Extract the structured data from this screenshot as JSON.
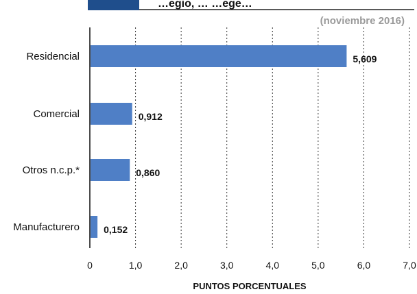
{
  "chart_data": {
    "type": "bar",
    "orientation": "horizontal",
    "title": "…egio, … …ege…",
    "subtitle": "(noviembre 2016)",
    "xlabel": "PUNTOS PORCENTUALES",
    "ylabel": "",
    "categories": [
      "Residencial",
      "Comercial",
      "Otros n.c.p.*",
      "Manufacturero"
    ],
    "values": [
      5.609,
      0.912,
      0.86,
      0.152
    ],
    "value_labels": [
      "5,609",
      "0,912",
      "0,860",
      "0,152"
    ],
    "xlim": [
      0,
      7
    ],
    "x_ticks": [
      "0",
      "1,0",
      "2,0",
      "3,0",
      "4,0",
      "5,0",
      "6,0",
      "7,0"
    ],
    "grid": "vertical dashed",
    "colors": {
      "bar": "#4f7fc6",
      "header_accent": "#1f4e8c",
      "subtitle": "#9a9a9a",
      "text": "#111111"
    }
  }
}
